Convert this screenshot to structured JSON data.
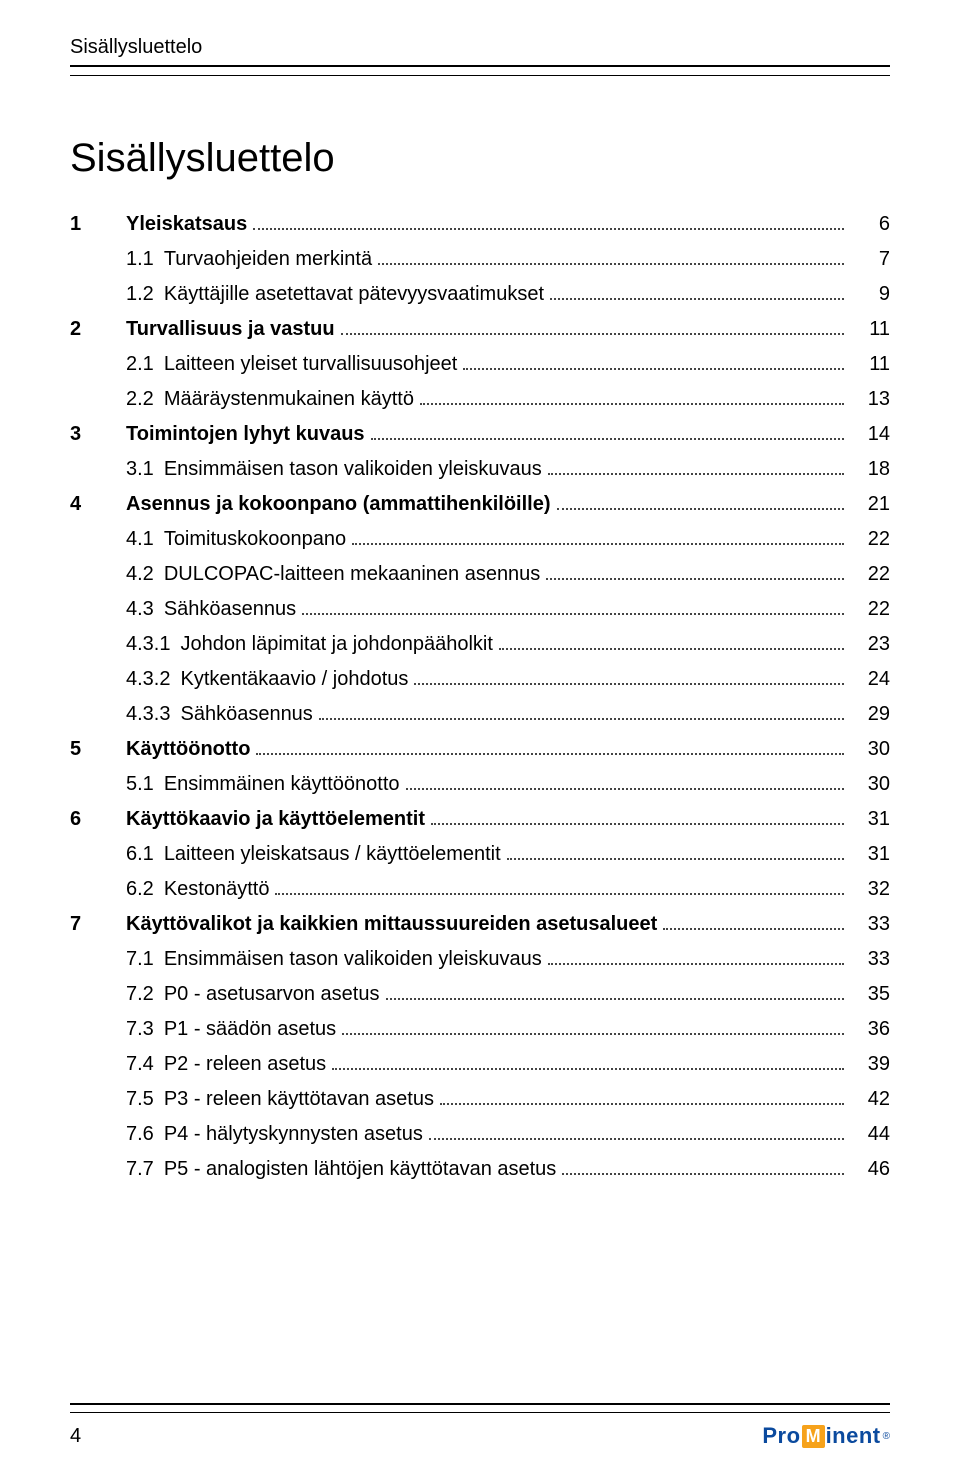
{
  "running_head": "Sisällysluettelo",
  "main_title": "Sisällysluettelo",
  "page_number": "4",
  "logo": {
    "pre": "Pro",
    "mid": "M",
    "post": "inent",
    "reg": "®"
  },
  "toc": [
    {
      "chap": "1",
      "num": "",
      "label": "Yleiskatsaus",
      "page": "6",
      "bold": true
    },
    {
      "chap": "",
      "num": "1.1",
      "label": "Turvaohjeiden merkintä",
      "page": "7",
      "bold": false
    },
    {
      "chap": "",
      "num": "1.2",
      "label": "Käyttäjille asetettavat pätevyysvaatimukset",
      "page": "9",
      "bold": false
    },
    {
      "chap": "2",
      "num": "",
      "label": "Turvallisuus ja vastuu",
      "page": "11",
      "bold": true
    },
    {
      "chap": "",
      "num": "2.1",
      "label": "Laitteen yleiset turvallisuusohjeet",
      "page": "11",
      "bold": false
    },
    {
      "chap": "",
      "num": "2.2",
      "label": "Määräystenmukainen käyttö",
      "page": "13",
      "bold": false
    },
    {
      "chap": "3",
      "num": "",
      "label": "Toimintojen lyhyt kuvaus",
      "page": "14",
      "bold": true
    },
    {
      "chap": "",
      "num": "3.1",
      "label": "Ensimmäisen tason valikoiden yleiskuvaus",
      "page": "18",
      "bold": false
    },
    {
      "chap": "4",
      "num": "",
      "label": "Asennus ja kokoonpano (ammattihenkilöille)",
      "page": "21",
      "bold": true
    },
    {
      "chap": "",
      "num": "4.1",
      "label": "Toimituskokoonpano",
      "page": "22",
      "bold": false
    },
    {
      "chap": "",
      "num": "4.2",
      "label": "DULCOPAC-laitteen mekaaninen asennus",
      "page": "22",
      "bold": false
    },
    {
      "chap": "",
      "num": "4.3",
      "label": "Sähköasennus",
      "page": "22",
      "bold": false
    },
    {
      "chap": "",
      "num": "4.3.1",
      "label": "Johdon läpimitat ja johdonpääholkit",
      "page": "23",
      "bold": false
    },
    {
      "chap": "",
      "num": "4.3.2",
      "label": "Kytkentäkaavio / johdotus",
      "page": "24",
      "bold": false
    },
    {
      "chap": "",
      "num": "4.3.3",
      "label": "Sähköasennus",
      "page": "29",
      "bold": false
    },
    {
      "chap": "5",
      "num": "",
      "label": "Käyttöönotto",
      "page": "30",
      "bold": true
    },
    {
      "chap": "",
      "num": "5.1",
      "label": "Ensimmäinen käyttöönotto",
      "page": "30",
      "bold": false
    },
    {
      "chap": "6",
      "num": "",
      "label": "Käyttökaavio ja käyttöelementit",
      "page": "31",
      "bold": true
    },
    {
      "chap": "",
      "num": "6.1",
      "label": "Laitteen yleiskatsaus / käyttöelementit",
      "page": "31",
      "bold": false
    },
    {
      "chap": "",
      "num": "6.2",
      "label": "Kestonäyttö",
      "page": "32",
      "bold": false
    },
    {
      "chap": "7",
      "num": "",
      "label": "Käyttövalikot ja kaikkien mittaussuureiden asetusalueet",
      "page": "33",
      "bold": true
    },
    {
      "chap": "",
      "num": "7.1",
      "label": "Ensimmäisen tason valikoiden yleiskuvaus",
      "page": "33",
      "bold": false
    },
    {
      "chap": "",
      "num": "7.2",
      "label": "P0 - asetusarvon asetus",
      "page": "35",
      "bold": false
    },
    {
      "chap": "",
      "num": "7.3",
      "label": "P1 - säädön asetus",
      "page": "36",
      "bold": false
    },
    {
      "chap": "",
      "num": "7.4",
      "label": "P2 - releen asetus",
      "page": "39",
      "bold": false
    },
    {
      "chap": "",
      "num": "7.5",
      "label": "P3 - releen käyttötavan asetus",
      "page": "42",
      "bold": false
    },
    {
      "chap": "",
      "num": "7.6",
      "label": "P4 - hälytyskynnysten asetus",
      "page": "44",
      "bold": false
    },
    {
      "chap": "",
      "num": "7.7",
      "label": "P5 - analogisten lähtöjen käyttötavan asetus",
      "page": "46",
      "bold": false
    }
  ]
}
